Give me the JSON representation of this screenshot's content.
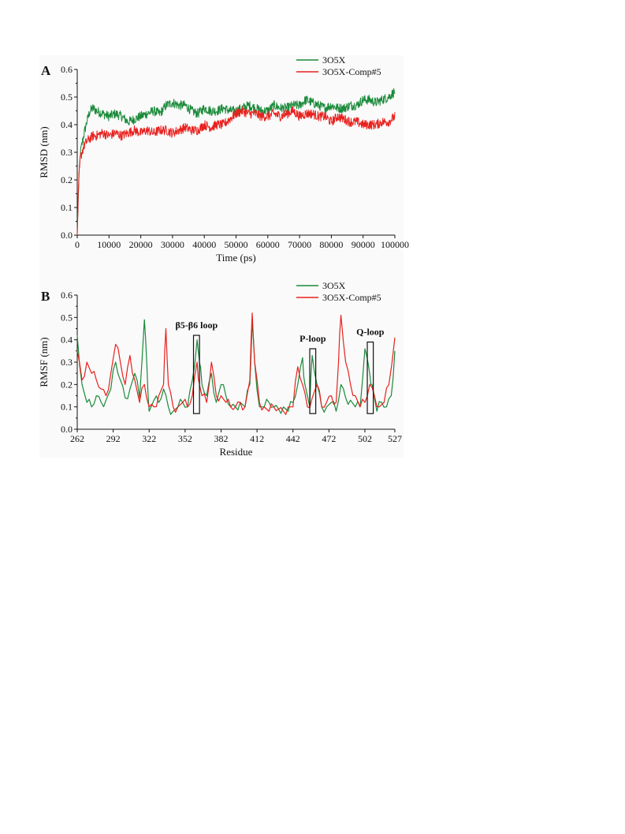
{
  "chart_data": [
    {
      "panel_label": "A",
      "type": "line",
      "xlabel": "Time (ps)",
      "ylabel": "RMSD (nm)",
      "xlim": [
        0,
        100000
      ],
      "ylim": [
        0.0,
        0.6
      ],
      "xticks": [
        "0",
        "10000",
        "20000",
        "30000",
        "40000",
        "50000",
        "60000",
        "70000",
        "80000",
        "90000",
        "100000"
      ],
      "yticks": [
        "0.0",
        "0.1",
        "0.2",
        "0.3",
        "0.4",
        "0.5",
        "0.6"
      ],
      "legend_position": "top-right",
      "series": [
        {
          "name": "3O5X",
          "color": "#1a8a3a",
          "x": [
            0,
            500,
            1000,
            2000,
            3000,
            4000,
            5000,
            6000,
            8000,
            10000,
            12000,
            14000,
            16000,
            18000,
            20000,
            22000,
            24000,
            26000,
            28000,
            30000,
            32000,
            34000,
            36000,
            38000,
            40000,
            42000,
            44000,
            46000,
            48000,
            50000,
            52000,
            54000,
            56000,
            58000,
            60000,
            62000,
            64000,
            66000,
            68000,
            70000,
            72000,
            74000,
            76000,
            78000,
            80000,
            82000,
            84000,
            86000,
            88000,
            90000,
            92000,
            94000,
            96000,
            98000,
            100000
          ],
          "y": [
            0.0,
            0.2,
            0.3,
            0.36,
            0.41,
            0.45,
            0.46,
            0.45,
            0.44,
            0.43,
            0.44,
            0.43,
            0.41,
            0.42,
            0.43,
            0.44,
            0.45,
            0.44,
            0.47,
            0.48,
            0.47,
            0.47,
            0.45,
            0.44,
            0.46,
            0.45,
            0.45,
            0.46,
            0.45,
            0.45,
            0.46,
            0.47,
            0.46,
            0.45,
            0.45,
            0.47,
            0.46,
            0.46,
            0.47,
            0.47,
            0.49,
            0.48,
            0.47,
            0.46,
            0.47,
            0.46,
            0.46,
            0.47,
            0.47,
            0.49,
            0.49,
            0.48,
            0.49,
            0.5,
            0.52
          ]
        },
        {
          "name": "3O5X-Comp#5",
          "color": "#e8211e",
          "x": [
            0,
            500,
            1000,
            2000,
            3000,
            4000,
            5000,
            6000,
            8000,
            10000,
            12000,
            14000,
            16000,
            18000,
            20000,
            22000,
            24000,
            26000,
            28000,
            30000,
            32000,
            34000,
            36000,
            38000,
            40000,
            42000,
            44000,
            46000,
            48000,
            50000,
            52000,
            54000,
            56000,
            58000,
            60000,
            62000,
            64000,
            66000,
            68000,
            70000,
            72000,
            74000,
            76000,
            78000,
            80000,
            82000,
            84000,
            86000,
            88000,
            90000,
            92000,
            94000,
            96000,
            98000,
            100000
          ],
          "y": [
            0.0,
            0.2,
            0.28,
            0.32,
            0.34,
            0.35,
            0.36,
            0.36,
            0.37,
            0.36,
            0.37,
            0.36,
            0.37,
            0.38,
            0.37,
            0.38,
            0.37,
            0.38,
            0.38,
            0.37,
            0.38,
            0.39,
            0.38,
            0.38,
            0.4,
            0.39,
            0.4,
            0.4,
            0.42,
            0.44,
            0.45,
            0.44,
            0.44,
            0.43,
            0.43,
            0.44,
            0.43,
            0.44,
            0.45,
            0.43,
            0.44,
            0.44,
            0.43,
            0.43,
            0.41,
            0.43,
            0.42,
            0.41,
            0.41,
            0.4,
            0.4,
            0.4,
            0.41,
            0.41,
            0.43
          ]
        }
      ]
    },
    {
      "panel_label": "B",
      "type": "line",
      "xlabel": "Residue",
      "ylabel": "RMSF (nm)",
      "xlim": [
        262,
        527
      ],
      "ylim": [
        0.0,
        0.6
      ],
      "xticks": [
        "262",
        "292",
        "322",
        "352",
        "382",
        "412",
        "442",
        "472",
        "502",
        "527"
      ],
      "yticks": [
        "0.0",
        "0.1",
        "0.2",
        "0.3",
        "0.4",
        "0.5",
        "0.6"
      ],
      "legend_position": "top-right",
      "series": [
        {
          "name": "3O5X",
          "color": "#1a8a3a",
          "x": [
            262,
            266,
            270,
            274,
            278,
            282,
            286,
            290,
            294,
            298,
            302,
            306,
            310,
            314,
            318,
            320,
            322,
            326,
            330,
            334,
            338,
            342,
            346,
            350,
            354,
            358,
            362,
            364,
            366,
            370,
            374,
            378,
            382,
            386,
            390,
            394,
            398,
            402,
            406,
            408,
            410,
            414,
            418,
            422,
            426,
            430,
            434,
            438,
            442,
            446,
            450,
            452,
            456,
            458,
            462,
            466,
            470,
            474,
            478,
            482,
            486,
            490,
            494,
            498,
            502,
            506,
            508,
            512,
            516,
            520,
            524,
            527
          ],
          "y": [
            0.42,
            0.2,
            0.12,
            0.1,
            0.15,
            0.12,
            0.13,
            0.18,
            0.3,
            0.22,
            0.14,
            0.18,
            0.25,
            0.14,
            0.49,
            0.3,
            0.08,
            0.13,
            0.12,
            0.18,
            0.1,
            0.08,
            0.1,
            0.12,
            0.1,
            0.22,
            0.4,
            0.3,
            0.2,
            0.15,
            0.25,
            0.12,
            0.2,
            0.15,
            0.1,
            0.1,
            0.12,
            0.1,
            0.2,
            0.48,
            0.3,
            0.1,
            0.1,
            0.12,
            0.1,
            0.09,
            0.1,
            0.08,
            0.12,
            0.2,
            0.32,
            0.2,
            0.1,
            0.33,
            0.2,
            0.1,
            0.1,
            0.12,
            0.08,
            0.2,
            0.14,
            0.13,
            0.1,
            0.1,
            0.36,
            0.25,
            0.2,
            0.08,
            0.12,
            0.1,
            0.15,
            0.35
          ]
        },
        {
          "name": "3O5X-Comp#5",
          "color": "#e8211e",
          "x": [
            262,
            266,
            270,
            274,
            278,
            282,
            286,
            290,
            294,
            298,
            302,
            306,
            310,
            314,
            318,
            322,
            326,
            330,
            334,
            336,
            338,
            342,
            346,
            350,
            354,
            358,
            362,
            364,
            366,
            370,
            374,
            378,
            382,
            386,
            390,
            394,
            398,
            402,
            406,
            408,
            410,
            414,
            418,
            422,
            426,
            430,
            434,
            438,
            442,
            446,
            450,
            454,
            458,
            462,
            466,
            470,
            474,
            478,
            480,
            482,
            486,
            490,
            494,
            498,
            502,
            506,
            510,
            514,
            518,
            522,
            527
          ],
          "y": [
            0.35,
            0.22,
            0.3,
            0.25,
            0.22,
            0.18,
            0.15,
            0.25,
            0.38,
            0.3,
            0.2,
            0.33,
            0.22,
            0.12,
            0.2,
            0.1,
            0.1,
            0.15,
            0.2,
            0.45,
            0.2,
            0.1,
            0.1,
            0.12,
            0.1,
            0.15,
            0.3,
            0.2,
            0.15,
            0.12,
            0.3,
            0.15,
            0.15,
            0.12,
            0.1,
            0.1,
            0.12,
            0.1,
            0.22,
            0.52,
            0.3,
            0.12,
            0.1,
            0.08,
            0.1,
            0.09,
            0.08,
            0.1,
            0.1,
            0.28,
            0.2,
            0.1,
            0.14,
            0.2,
            0.1,
            0.12,
            0.15,
            0.12,
            0.3,
            0.51,
            0.3,
            0.2,
            0.15,
            0.1,
            0.12,
            0.2,
            0.15,
            0.1,
            0.12,
            0.2,
            0.41
          ]
        }
      ],
      "annotations": [
        {
          "label": "β5-β6 loop",
          "x_range": [
            359,
            364
          ],
          "y_range": [
            0.07,
            0.42
          ]
        },
        {
          "label": "P-loop",
          "x_range": [
            456,
            461
          ],
          "y_range": [
            0.07,
            0.36
          ]
        },
        {
          "label": "Q-loop",
          "x_range": [
            504,
            509
          ],
          "y_range": [
            0.07,
            0.39
          ]
        }
      ]
    }
  ]
}
